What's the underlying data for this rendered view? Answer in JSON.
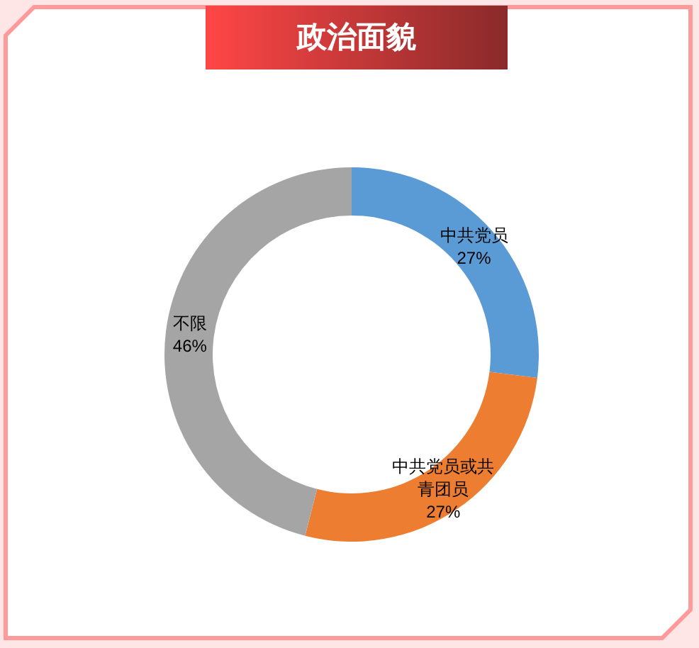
{
  "chart_data": {
    "type": "donut",
    "title": "政治面貌",
    "categories": [
      "中共党员",
      "中共党员或共青团员",
      "不限"
    ],
    "values": [
      27,
      27,
      46
    ],
    "colors": [
      "#5b9bd5",
      "#ed7d31",
      "#a5a5a5"
    ],
    "value_labels": [
      "27%",
      "27%",
      "46%"
    ]
  }
}
